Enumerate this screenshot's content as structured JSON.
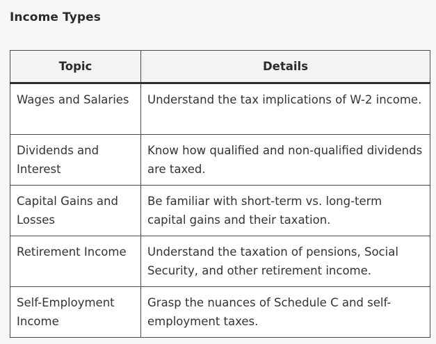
{
  "heading": "Income Types",
  "table": {
    "columns": [
      "Topic",
      "Details"
    ],
    "rows": [
      {
        "topic": "Wages and Salaries",
        "details": "Understand the tax implications of W-2 income."
      },
      {
        "topic": "Dividends and Interest",
        "details": "Know how qualified and non-qualified dividends are taxed."
      },
      {
        "topic": "Capital Gains and Losses",
        "details": "Be familiar with short-term vs. long-term capital gains and their taxation."
      },
      {
        "topic": "Retirement Income",
        "details": "Understand the taxation of pensions, Social Security, and other retirement income."
      },
      {
        "topic": "Self-Employment Income",
        "details": "Grasp the nuances of Schedule C and self-employment taxes."
      }
    ]
  }
}
